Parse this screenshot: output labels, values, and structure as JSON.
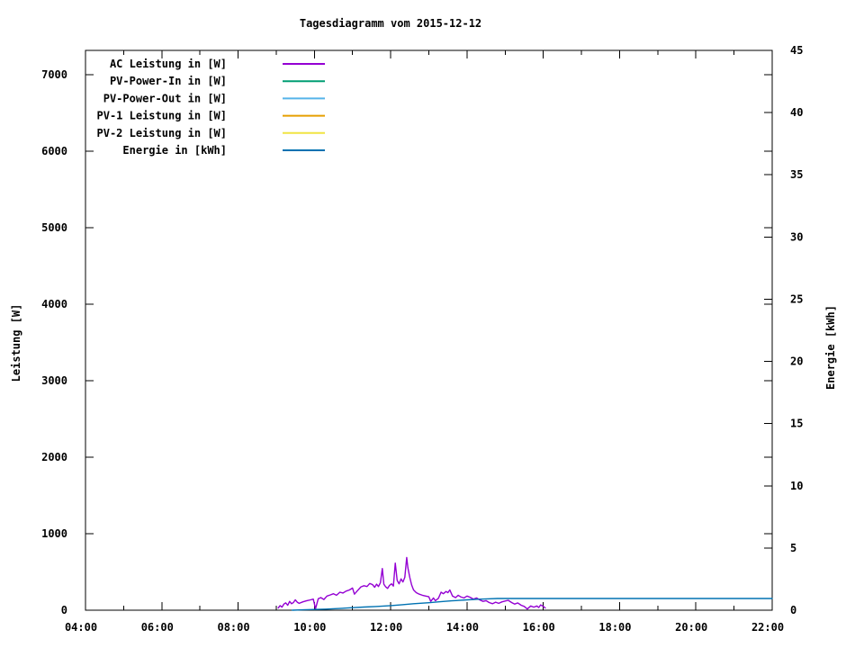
{
  "title": "Tagesdiagramm vom 2015-12-12",
  "chart_data": {
    "type": "line",
    "title": "Tagesdiagramm vom 2015-12-12",
    "xlabel": "",
    "ylabel": "Leistung [W]",
    "y2label": "Energie [kWh]",
    "grid": false,
    "legend_position": "top-left-inside",
    "x_range_hours": [
      4,
      22
    ],
    "x_major_ticks": [
      {
        "hour": 4,
        "label": "04:00"
      },
      {
        "hour": 6,
        "label": "06:00"
      },
      {
        "hour": 8,
        "label": "08:00"
      },
      {
        "hour": 10,
        "label": "10:00"
      },
      {
        "hour": 12,
        "label": "12:00"
      },
      {
        "hour": 14,
        "label": "14:00"
      },
      {
        "hour": 16,
        "label": "16:00"
      },
      {
        "hour": 18,
        "label": "18:00"
      },
      {
        "hour": 20,
        "label": "20:00"
      },
      {
        "hour": 22,
        "label": "22:00"
      }
    ],
    "x_minor_step_hours": 1,
    "y_range": [
      0,
      7320
    ],
    "y_ticks": [
      0,
      1000,
      2000,
      3000,
      4000,
      5000,
      6000,
      7000
    ],
    "y2_range": [
      0,
      45
    ],
    "y2_ticks": [
      0,
      5,
      10,
      15,
      20,
      25,
      30,
      35,
      40,
      45
    ],
    "series": [
      {
        "name": "AC Leistung in [W]",
        "color": "#9400d3",
        "axis": "y1",
        "points": [
          [
            9.05,
            30
          ],
          [
            9.1,
            60
          ],
          [
            9.15,
            40
          ],
          [
            9.2,
            80
          ],
          [
            9.25,
            95
          ],
          [
            9.3,
            65
          ],
          [
            9.35,
            115
          ],
          [
            9.4,
            85
          ],
          [
            9.45,
            100
          ],
          [
            9.5,
            135
          ],
          [
            9.55,
            105
          ],
          [
            9.6,
            90
          ],
          [
            9.7,
            110
          ],
          [
            9.8,
            125
          ],
          [
            9.9,
            135
          ],
          [
            9.97,
            145
          ],
          [
            10.03,
            20
          ],
          [
            10.1,
            150
          ],
          [
            10.17,
            165
          ],
          [
            10.25,
            140
          ],
          [
            10.33,
            185
          ],
          [
            10.42,
            200
          ],
          [
            10.5,
            215
          ],
          [
            10.58,
            195
          ],
          [
            10.67,
            235
          ],
          [
            10.75,
            225
          ],
          [
            10.83,
            250
          ],
          [
            10.92,
            265
          ],
          [
            11.0,
            290
          ],
          [
            11.05,
            210
          ],
          [
            11.13,
            255
          ],
          [
            11.22,
            305
          ],
          [
            11.3,
            320
          ],
          [
            11.38,
            310
          ],
          [
            11.45,
            350
          ],
          [
            11.52,
            335
          ],
          [
            11.58,
            300
          ],
          [
            11.63,
            340
          ],
          [
            11.68,
            310
          ],
          [
            11.73,
            360
          ],
          [
            11.78,
            545
          ],
          [
            11.82,
            340
          ],
          [
            11.87,
            305
          ],
          [
            11.92,
            285
          ],
          [
            11.97,
            325
          ],
          [
            12.02,
            345
          ],
          [
            12.07,
            315
          ],
          [
            12.12,
            615
          ],
          [
            12.17,
            390
          ],
          [
            12.22,
            345
          ],
          [
            12.27,
            410
          ],
          [
            12.32,
            370
          ],
          [
            12.37,
            430
          ],
          [
            12.42,
            690
          ],
          [
            12.45,
            555
          ],
          [
            12.5,
            430
          ],
          [
            12.55,
            330
          ],
          [
            12.6,
            265
          ],
          [
            12.67,
            230
          ],
          [
            12.75,
            210
          ],
          [
            12.83,
            195
          ],
          [
            12.92,
            185
          ],
          [
            13.0,
            175
          ],
          [
            13.05,
            115
          ],
          [
            13.12,
            160
          ],
          [
            13.17,
            125
          ],
          [
            13.25,
            155
          ],
          [
            13.32,
            235
          ],
          [
            13.38,
            215
          ],
          [
            13.45,
            245
          ],
          [
            13.5,
            230
          ],
          [
            13.55,
            265
          ],
          [
            13.62,
            185
          ],
          [
            13.7,
            165
          ],
          [
            13.77,
            195
          ],
          [
            13.83,
            175
          ],
          [
            13.92,
            160
          ],
          [
            14.0,
            185
          ],
          [
            14.08,
            170
          ],
          [
            14.17,
            145
          ],
          [
            14.25,
            160
          ],
          [
            14.33,
            135
          ],
          [
            14.42,
            115
          ],
          [
            14.5,
            125
          ],
          [
            14.58,
            100
          ],
          [
            14.67,
            85
          ],
          [
            14.75,
            105
          ],
          [
            14.83,
            90
          ],
          [
            14.92,
            110
          ],
          [
            15.0,
            120
          ],
          [
            15.08,
            130
          ],
          [
            15.17,
            100
          ],
          [
            15.25,
            80
          ],
          [
            15.33,
            95
          ],
          [
            15.42,
            65
          ],
          [
            15.5,
            50
          ],
          [
            15.58,
            15
          ],
          [
            15.67,
            55
          ],
          [
            15.75,
            40
          ],
          [
            15.83,
            55
          ],
          [
            15.88,
            35
          ],
          [
            15.93,
            70
          ],
          [
            16.0,
            50
          ],
          [
            16.05,
            30
          ]
        ]
      },
      {
        "name": "PV-Power-In in [W]",
        "color": "#009e73",
        "axis": "y1",
        "points": []
      },
      {
        "name": "PV-Power-Out in [W]",
        "color": "#56b4e9",
        "axis": "y1",
        "points": []
      },
      {
        "name": "PV-1 Leistung in [W]",
        "color": "#e69f00",
        "axis": "y1",
        "points": []
      },
      {
        "name": "PV-2 Leistung in [W]",
        "color": "#f0e442",
        "axis": "y1",
        "points": []
      },
      {
        "name": "Energie in [kWh]",
        "color": "#0072b2",
        "axis": "y2",
        "points": [
          [
            9.42,
            0.0
          ],
          [
            9.7,
            0.03
          ],
          [
            10.0,
            0.06
          ],
          [
            10.3,
            0.09
          ],
          [
            10.6,
            0.13
          ],
          [
            11.0,
            0.2
          ],
          [
            11.3,
            0.25
          ],
          [
            11.6,
            0.3
          ],
          [
            12.0,
            0.37
          ],
          [
            12.3,
            0.44
          ],
          [
            12.6,
            0.52
          ],
          [
            13.0,
            0.6
          ],
          [
            13.3,
            0.68
          ],
          [
            13.6,
            0.75
          ],
          [
            14.0,
            0.83
          ],
          [
            14.3,
            0.88
          ],
          [
            14.6,
            0.92
          ],
          [
            14.8,
            0.94
          ],
          [
            15.0,
            0.94
          ],
          [
            22.0,
            0.94
          ]
        ]
      }
    ]
  }
}
